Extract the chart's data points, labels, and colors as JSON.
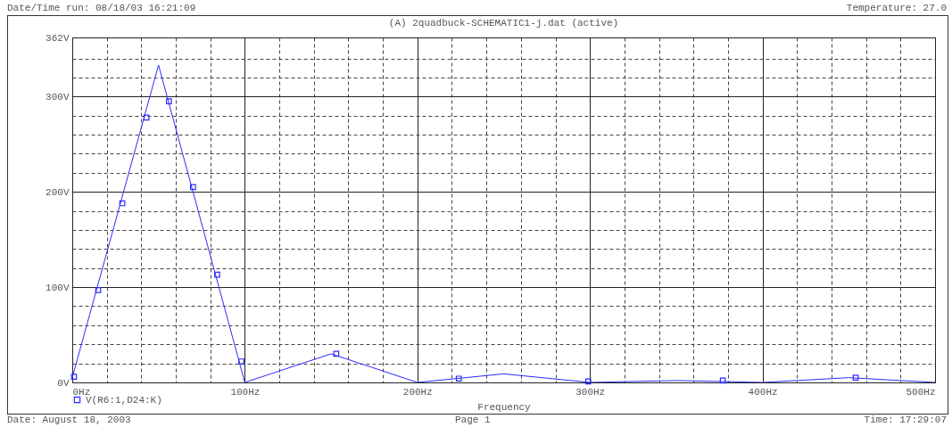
{
  "chart_data": {
    "type": "line",
    "title": "(A) 2quadbuck-SCHEMATIC1-j.dat (active)",
    "xlabel": "Frequency",
    "annotations": [
      "Date/Time run: 08/18/03 16:21:09",
      "Temperature: 27.0",
      "Date: August 18, 2003",
      "Page 1",
      "Time: 17:29:07"
    ],
    "series": [
      {
        "type": "line",
        "color": "#2b2bff",
        "x": [
          0,
          50,
          100,
          150,
          200,
          250,
          300,
          350,
          400,
          450,
          500
        ],
        "values": [
          5,
          333,
          0,
          30,
          0,
          9,
          0,
          2,
          0,
          5,
          0
        ]
      },
      {
        "type": "scatter",
        "name": "V(R6:1,D24:K)",
        "color": "#2b2bff",
        "marker": "square",
        "x": [
          1,
          15,
          29,
          43,
          56,
          70,
          84,
          98,
          153,
          224,
          299,
          377,
          454
        ],
        "values": [
          6,
          97,
          188,
          278,
          295,
          205,
          113,
          22,
          30,
          4,
          1,
          2,
          5
        ]
      }
    ],
    "xlim": [
      0,
      500
    ],
    "xticks": [
      {
        "value": 0,
        "label": "0Hz"
      },
      {
        "value": 20,
        "label": null
      },
      {
        "value": 40,
        "label": null
      },
      {
        "value": 60,
        "label": null
      },
      {
        "value": 80,
        "label": null
      },
      {
        "value": 100,
        "label": "100Hz"
      },
      {
        "value": 120,
        "label": null
      },
      {
        "value": 140,
        "label": null
      },
      {
        "value": 160,
        "label": null
      },
      {
        "value": 180,
        "label": null
      },
      {
        "value": 200,
        "label": "200Hz"
      },
      {
        "value": 220,
        "label": null
      },
      {
        "value": 240,
        "label": null
      },
      {
        "value": 260,
        "label": null
      },
      {
        "value": 280,
        "label": null
      },
      {
        "value": 300,
        "label": "300Hz"
      },
      {
        "value": 320,
        "label": null
      },
      {
        "value": 340,
        "label": null
      },
      {
        "value": 360,
        "label": null
      },
      {
        "value": 380,
        "label": null
      },
      {
        "value": 400,
        "label": "400Hz"
      },
      {
        "value": 420,
        "label": null
      },
      {
        "value": 440,
        "label": null
      },
      {
        "value": 460,
        "label": null
      },
      {
        "value": 480,
        "label": null
      },
      {
        "value": 500,
        "label": "500Hz"
      }
    ],
    "ylim": [
      0,
      362
    ],
    "yticks": [
      {
        "value": 0,
        "label": "0V"
      },
      {
        "value": 20,
        "label": null
      },
      {
        "value": 40,
        "label": null
      },
      {
        "value": 60,
        "label": null
      },
      {
        "value": 80,
        "label": null
      },
      {
        "value": 100,
        "label": "100V"
      },
      {
        "value": 120,
        "label": null
      },
      {
        "value": 140,
        "label": null
      },
      {
        "value": 160,
        "label": null
      },
      {
        "value": 180,
        "label": null
      },
      {
        "value": 200,
        "label": "200V"
      },
      {
        "value": 220,
        "label": null
      },
      {
        "value": 240,
        "label": null
      },
      {
        "value": 260,
        "label": null
      },
      {
        "value": 280,
        "label": null
      },
      {
        "value": 300,
        "label": "300V"
      },
      {
        "value": 320,
        "label": null
      },
      {
        "value": 340,
        "label": null
      },
      {
        "value": 362,
        "label": "362V"
      }
    ],
    "grid": true,
    "legend": "bottom left"
  }
}
